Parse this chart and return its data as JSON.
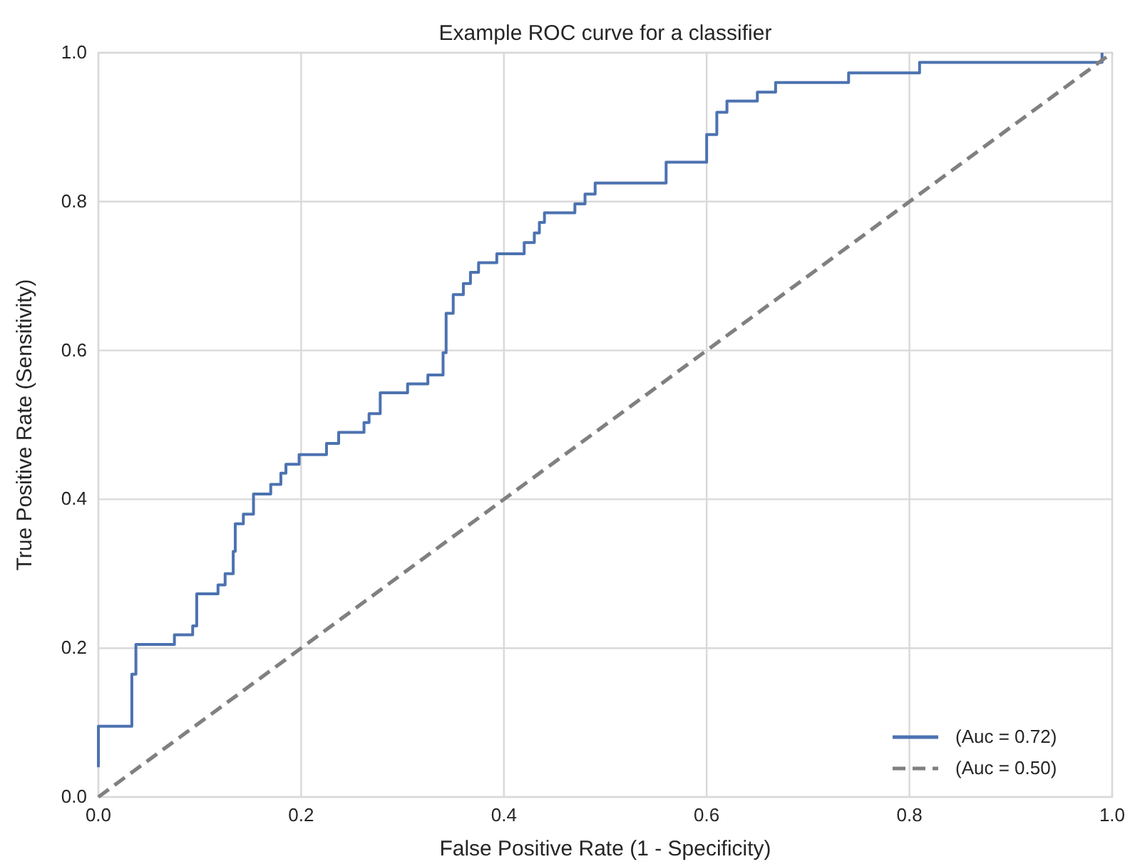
{
  "chart_data": {
    "type": "step",
    "title": "Example ROC curve for a classifier",
    "xlabel": "False Positive Rate (1 - Specificity)",
    "ylabel": "True Positive Rate (Sensitivity)",
    "xlim": [
      0,
      1
    ],
    "ylim": [
      0,
      1
    ],
    "xticks": [
      {
        "value": 0,
        "label": "0.0"
      },
      {
        "value": 0.2,
        "label": "0.2"
      },
      {
        "value": 0.4,
        "label": "0.4"
      },
      {
        "value": 0.6,
        "label": "0.6"
      },
      {
        "value": 0.8,
        "label": "0.8"
      },
      {
        "value": 1,
        "label": "1.0"
      }
    ],
    "yticks": [
      {
        "value": 0,
        "label": "0.0"
      },
      {
        "value": 0.2,
        "label": "0.2"
      },
      {
        "value": 0.4,
        "label": "0.4"
      },
      {
        "value": 0.6,
        "label": "0.6"
      },
      {
        "value": 0.8,
        "label": "0.8"
      },
      {
        "value": 1,
        "label": "1.0"
      }
    ],
    "grid": true,
    "legend": "bottom right",
    "series": [
      {
        "name": "(Auc = 0.72)",
        "color": "#4c72b0",
        "line_style": "solid",
        "x": [
          0,
          0,
          0.033,
          0.037,
          0.075,
          0.093,
          0.097,
          0.118,
          0.125,
          0.133,
          0.135,
          0.143,
          0.153,
          0.17,
          0.18,
          0.185,
          0.198,
          0.225,
          0.237,
          0.262,
          0.267,
          0.278,
          0.305,
          0.325,
          0.34,
          0.343,
          0.35,
          0.36,
          0.367,
          0.375,
          0.393,
          0.42,
          0.43,
          0.435,
          0.44,
          0.47,
          0.48,
          0.49,
          0.56,
          0.6,
          0.61,
          0.62,
          0.65,
          0.668,
          0.74,
          0.81,
          0.99
        ],
        "values": [
          0.04,
          0.095,
          0.165,
          0.205,
          0.218,
          0.23,
          0.273,
          0.285,
          0.3,
          0.33,
          0.367,
          0.38,
          0.407,
          0.42,
          0.435,
          0.447,
          0.46,
          0.475,
          0.49,
          0.503,
          0.515,
          0.543,
          0.555,
          0.567,
          0.597,
          0.65,
          0.675,
          0.69,
          0.705,
          0.718,
          0.73,
          0.745,
          0.758,
          0.772,
          0.785,
          0.797,
          0.81,
          0.825,
          0.853,
          0.89,
          0.92,
          0.935,
          0.947,
          0.96,
          0.973,
          0.987,
          1.0
        ]
      },
      {
        "name": "(Auc = 0.50)",
        "type": "line",
        "color": "#808080",
        "line_style": "dashed",
        "x": [
          0,
          1
        ],
        "values": [
          0,
          1
        ]
      }
    ]
  }
}
